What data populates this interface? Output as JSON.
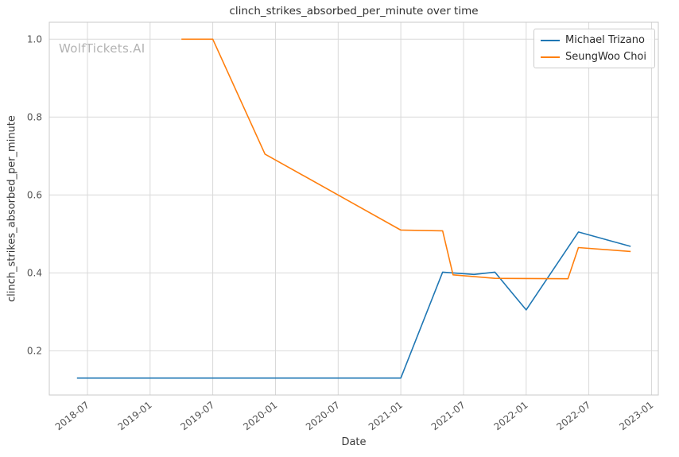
{
  "watermark": "WolfTickets.AI",
  "chart_data": {
    "type": "line",
    "title": "clinch_strikes_absorbed_per_minute over time",
    "xlabel": "Date",
    "ylabel": "clinch_strikes_absorbed_per_minute",
    "grid": true,
    "legend_position": "upper right",
    "background": "#ffffff",
    "grid_color": "#d9d9d9",
    "ylim": [
      0.0865,
      1.0435
    ],
    "y_ticks": [
      0.2,
      0.4,
      0.6,
      0.8,
      1.0
    ],
    "x_ticks": [
      "2018-07",
      "2019-01",
      "2019-07",
      "2020-01",
      "2020-07",
      "2021-01",
      "2021-07",
      "2022-01",
      "2022-07",
      "2023-01"
    ],
    "series": [
      {
        "name": "Michael Trizano",
        "color": "#1f77b4",
        "points": [
          {
            "x": "2018-06",
            "y": 0.13
          },
          {
            "x": "2021-01",
            "y": 0.13
          },
          {
            "x": "2021-05",
            "y": 0.402
          },
          {
            "x": "2021-08",
            "y": 0.396
          },
          {
            "x": "2021-10",
            "y": 0.402
          },
          {
            "x": "2022-01",
            "y": 0.305
          },
          {
            "x": "2022-06",
            "y": 0.505
          },
          {
            "x": "2022-11",
            "y": 0.468
          }
        ]
      },
      {
        "name": "SeungWoo Choi",
        "color": "#ff7f0e",
        "points": [
          {
            "x": "2019-04",
            "y": 1.0
          },
          {
            "x": "2019-07",
            "y": 1.0
          },
          {
            "x": "2019-12",
            "y": 0.705
          },
          {
            "x": "2021-01",
            "y": 0.51
          },
          {
            "x": "2021-05",
            "y": 0.508
          },
          {
            "x": "2021-06",
            "y": 0.395
          },
          {
            "x": "2021-10",
            "y": 0.386
          },
          {
            "x": "2022-05",
            "y": 0.385
          },
          {
            "x": "2022-06",
            "y": 0.465
          },
          {
            "x": "2022-11",
            "y": 0.455
          }
        ]
      }
    ]
  }
}
